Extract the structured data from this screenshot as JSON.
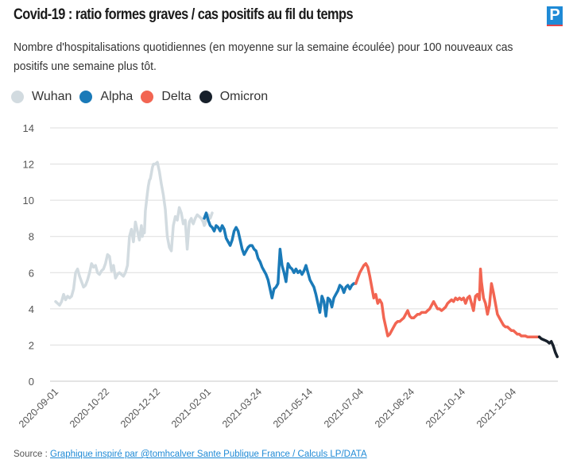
{
  "header": {
    "title": "Covid-19 : ratio formes graves / cas positifs au fil du temps",
    "subtitle": "Nombre d'hospitalisations quotidiennes (en moyenne sur la semaine écoulée) pour 100 nouveaux cas positifs une semaine plus tôt.",
    "logo_letter": "P",
    "logo_icon": "le-parisien-logo-icon"
  },
  "footer": {
    "source_label": "Source : ",
    "source_link": "Graphique inspiré par @tomhcalver Sante Publique France / Calculs LP/DATA"
  },
  "colors": {
    "Wuhan": "#d2dbe0",
    "Alpha": "#1a7ab8",
    "Delta": "#f26552",
    "Omicron": "#17202b",
    "grid": "#dddddd",
    "axis_text": "#555555"
  },
  "chart_data": {
    "type": "line",
    "title": "Covid-19 : ratio formes graves / cas positifs au fil du temps",
    "xlabel": "",
    "ylabel": "",
    "ylim": [
      0,
      14
    ],
    "yticks": [
      0,
      2,
      4,
      6,
      8,
      10,
      12,
      14
    ],
    "x_start": "2020-09-01",
    "x_unit": "days since 2020-09-01",
    "xlim": [
      0,
      504
    ],
    "xticks": [
      {
        "day": 0,
        "label": "2020-09-01"
      },
      {
        "day": 51,
        "label": "2020-10-22"
      },
      {
        "day": 102,
        "label": "2020-12-12"
      },
      {
        "day": 153,
        "label": "2021-02-01"
      },
      {
        "day": 204,
        "label": "2021-03-24"
      },
      {
        "day": 255,
        "label": "2021-05-14"
      },
      {
        "day": 306,
        "label": "2021-07-04"
      },
      {
        "day": 357,
        "label": "2021-08-24"
      },
      {
        "day": 408,
        "label": "2021-10-14"
      },
      {
        "day": 459,
        "label": "2021-12-04"
      }
    ],
    "grid": true,
    "legend_position": "top-left",
    "series": [
      {
        "name": "Wuhan",
        "x": [
          0,
          2,
          4,
          6,
          8,
          10,
          12,
          14,
          16,
          18,
          20,
          22,
          24,
          26,
          28,
          30,
          32,
          34,
          36,
          38,
          40,
          42,
          44,
          46,
          48,
          50,
          52,
          54,
          56,
          58,
          60,
          62,
          64,
          66,
          68,
          70,
          72,
          74,
          76,
          78,
          80,
          82,
          84,
          86,
          87,
          88,
          89,
          90,
          91,
          92,
          93,
          94,
          95,
          96,
          97,
          98,
          100,
          102,
          104,
          106,
          108,
          110,
          112,
          114,
          116,
          118,
          120,
          122,
          124,
          126,
          128,
          130,
          132,
          134,
          136,
          137,
          138,
          140,
          142,
          144,
          146,
          148,
          149,
          150,
          151,
          152,
          153,
          154,
          155,
          156,
          157
        ],
        "values": [
          4.4,
          4.3,
          4.2,
          4.4,
          4.8,
          4.5,
          4.7,
          4.6,
          4.7,
          5.1,
          6.0,
          6.2,
          5.8,
          5.5,
          5.2,
          5.3,
          5.6,
          6.0,
          6.5,
          6.3,
          6.4,
          6.0,
          5.9,
          6.1,
          6.2,
          6.5,
          7.0,
          6.9,
          6.1,
          6.4,
          5.7,
          5.9,
          6.0,
          5.9,
          5.8,
          6.0,
          6.4,
          8.0,
          8.4,
          7.7,
          8.8,
          8.3,
          7.8,
          8.6,
          8.0,
          8.4,
          8.2,
          9.4,
          9.9,
          10.4,
          10.8,
          11.1,
          11.2,
          11.5,
          11.8,
          12.0,
          12.0,
          12.1,
          11.6,
          10.9,
          10.3,
          9.5,
          8.0,
          7.4,
          7.2,
          8.6,
          9.1,
          8.9,
          9.6,
          9.3,
          8.7,
          8.9,
          7.3,
          8.8,
          9.0,
          8.8,
          8.7,
          9.0,
          9.2,
          9.1,
          9.0,
          8.8,
          8.6,
          8.7,
          9.0,
          9.1,
          9.2,
          9.1,
          9.0,
          9.15,
          9.3
        ]
      },
      {
        "name": "Alpha",
        "x": [
          149,
          151,
          153,
          155,
          157,
          159,
          161,
          163,
          165,
          167,
          169,
          171,
          173,
          175,
          177,
          179,
          181,
          183,
          185,
          187,
          189,
          191,
          193,
          195,
          197,
          199,
          201,
          203,
          205,
          207,
          209,
          211,
          213,
          215,
          217,
          219,
          221,
          223,
          225,
          227,
          229,
          231,
          233,
          235,
          237,
          239,
          241,
          243,
          245,
          247,
          249,
          251,
          253,
          255,
          257,
          259,
          261,
          263,
          265,
          267,
          269,
          271,
          273,
          275,
          277,
          279,
          281,
          283,
          285,
          287,
          289,
          291,
          293,
          295,
          297,
          299,
          301
        ],
        "values": [
          9.0,
          9.3,
          8.9,
          8.6,
          8.5,
          8.3,
          8.6,
          8.5,
          8.3,
          8.6,
          8.4,
          7.9,
          7.7,
          7.5,
          7.8,
          8.3,
          8.5,
          8.3,
          7.8,
          7.3,
          7.0,
          7.2,
          7.4,
          7.5,
          7.5,
          7.3,
          7.2,
          6.8,
          6.6,
          6.3,
          6.1,
          5.9,
          5.6,
          5.1,
          4.6,
          5.1,
          5.2,
          5.4,
          7.3,
          6.4,
          6.0,
          5.5,
          6.5,
          6.3,
          6.2,
          6.0,
          6.2,
          6.0,
          6.1,
          5.9,
          6.1,
          6.4,
          6.0,
          5.6,
          5.4,
          5.2,
          4.8,
          4.3,
          3.8,
          4.7,
          4.4,
          3.6,
          4.6,
          4.5,
          4.1,
          4.6,
          4.8,
          5.0,
          5.3,
          5.2,
          4.9,
          5.2,
          5.3,
          5.1,
          5.3,
          5.4,
          5.4
        ]
      },
      {
        "name": "Delta",
        "x": [
          301,
          303,
          305,
          307,
          309,
          311,
          313,
          315,
          317,
          319,
          321,
          323,
          325,
          327,
          329,
          331,
          333,
          335,
          337,
          339,
          341,
          343,
          345,
          347,
          349,
          351,
          353,
          355,
          357,
          359,
          361,
          363,
          365,
          367,
          369,
          371,
          373,
          375,
          377,
          379,
          381,
          383,
          385,
          387,
          389,
          391,
          393,
          395,
          397,
          399,
          401,
          403,
          405,
          407,
          409,
          411,
          413,
          415,
          417,
          419,
          421,
          423,
          425,
          426,
          427,
          429,
          431,
          433,
          435,
          437,
          439,
          441,
          443,
          445,
          447,
          449,
          451,
          453,
          455,
          457,
          459,
          461,
          463,
          465,
          467,
          469,
          471,
          473,
          475,
          477,
          479,
          481,
          483,
          485
        ],
        "values": [
          5.4,
          5.7,
          6.0,
          6.2,
          6.4,
          6.5,
          6.3,
          5.8,
          5.2,
          4.6,
          4.8,
          4.3,
          4.5,
          4.3,
          3.5,
          3.0,
          2.5,
          2.6,
          2.8,
          3.0,
          3.2,
          3.3,
          3.3,
          3.4,
          3.5,
          3.7,
          3.9,
          3.6,
          3.5,
          3.5,
          3.6,
          3.7,
          3.7,
          3.8,
          3.8,
          3.8,
          3.9,
          4.0,
          4.2,
          4.4,
          4.2,
          4.0,
          4.0,
          3.9,
          4.0,
          4.1,
          4.3,
          4.4,
          4.5,
          4.4,
          4.6,
          4.5,
          4.6,
          4.5,
          4.6,
          4.3,
          4.6,
          4.7,
          4.3,
          3.9,
          4.7,
          4.8,
          4.5,
          6.2,
          5.5,
          4.6,
          4.3,
          3.7,
          4.2,
          5.4,
          4.9,
          4.3,
          3.7,
          3.5,
          3.3,
          3.1,
          3.0,
          3.0,
          2.9,
          2.8,
          2.8,
          2.7,
          2.6,
          2.6,
          2.5,
          2.5,
          2.5,
          2.45,
          2.45,
          2.45,
          2.45,
          2.45,
          2.45,
          2.45
        ]
      },
      {
        "name": "Omicron",
        "x": [
          485,
          487,
          489,
          491,
          493,
          495,
          497,
          499,
          501,
          503
        ],
        "values": [
          2.45,
          2.35,
          2.3,
          2.25,
          2.2,
          2.1,
          2.2,
          1.95,
          1.6,
          1.35
        ]
      }
    ]
  }
}
